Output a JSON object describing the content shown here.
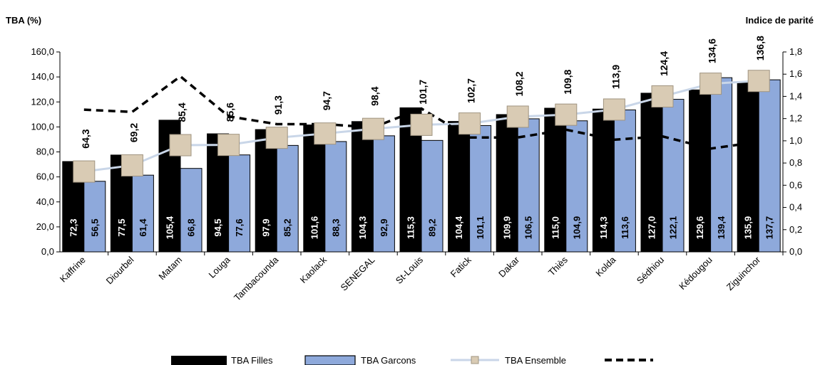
{
  "chart_data": {
    "type": "bar",
    "ylabel": "TBA (%)",
    "y2label": "Indice de parité",
    "ylim": [
      0,
      160
    ],
    "y2lim": [
      0,
      1.8
    ],
    "yticks": [
      "0,0",
      "20,0",
      "40,0",
      "60,0",
      "80,0",
      "100,0",
      "120,0",
      "140,0",
      "160,0"
    ],
    "y2ticks": [
      "0,0",
      "0,2",
      "0,4",
      "0,6",
      "0,8",
      "1,0",
      "1,2",
      "1,4",
      "1,6",
      "1,8"
    ],
    "categories": [
      "Kaffrine",
      "Diourbel",
      "Matam",
      "Louga",
      "Tambacounda",
      "Kaolack",
      "SENEGAL",
      "St-Louis",
      "Fatick",
      "Dakar",
      "Thiès",
      "Kolda",
      "Sédhiou",
      "Kédougou",
      "Ziguinchor"
    ],
    "series": [
      {
        "name": "TBA Filles",
        "kind": "bar",
        "color": "#000000",
        "values": [
          72.3,
          77.5,
          105.4,
          94.5,
          97.9,
          101.6,
          104.3,
          115.3,
          104.4,
          109.9,
          115.0,
          114.3,
          127.0,
          129.6,
          135.9
        ],
        "labels": [
          "72,3",
          "77,5",
          "105,4",
          "94,5",
          "97,9",
          "101,6",
          "104,3",
          "115,3",
          "104,4",
          "109,9",
          "115,0",
          "114,3",
          "127,0",
          "129,6",
          "135,9"
        ]
      },
      {
        "name": "TBA Garcons",
        "kind": "bar",
        "color": "#8EA9DB",
        "values": [
          56.5,
          61.4,
          66.8,
          77.6,
          85.2,
          88.3,
          92.9,
          89.2,
          101.1,
          106.5,
          104.9,
          113.6,
          122.1,
          139.4,
          137.7
        ],
        "labels": [
          "56,5",
          "61,4",
          "66,8",
          "77,6",
          "85,2",
          "88,3",
          "92,9",
          "89,2",
          "101,1",
          "106,5",
          "104,9",
          "113,6",
          "122,1",
          "139,4",
          "137,7"
        ]
      },
      {
        "name": "TBA Ensemble",
        "kind": "line",
        "color": "#C9D6E8",
        "marker_color": "#D9CBB4",
        "values": [
          64.3,
          69.2,
          85.4,
          85.6,
          91.3,
          94.7,
          98.4,
          101.7,
          102.7,
          108.2,
          109.8,
          113.9,
          124.4,
          134.6,
          136.8
        ],
        "labels": [
          "64,3",
          "69,2",
          "85,4",
          "85,6",
          "91,3",
          "94,7",
          "98,4",
          "101,7",
          "102,7",
          "108,2",
          "109,8",
          "113,9",
          "124,4",
          "134,6",
          "136,8"
        ]
      },
      {
        "name": "",
        "kind": "dashed-line",
        "axis": "y2",
        "color": "#000000",
        "values": [
          1.28,
          1.26,
          1.58,
          1.22,
          1.15,
          1.15,
          1.12,
          1.29,
          1.03,
          1.03,
          1.1,
          1.01,
          1.04,
          0.93,
          0.99
        ]
      }
    ],
    "legend_position": "bottom",
    "grid": false
  }
}
